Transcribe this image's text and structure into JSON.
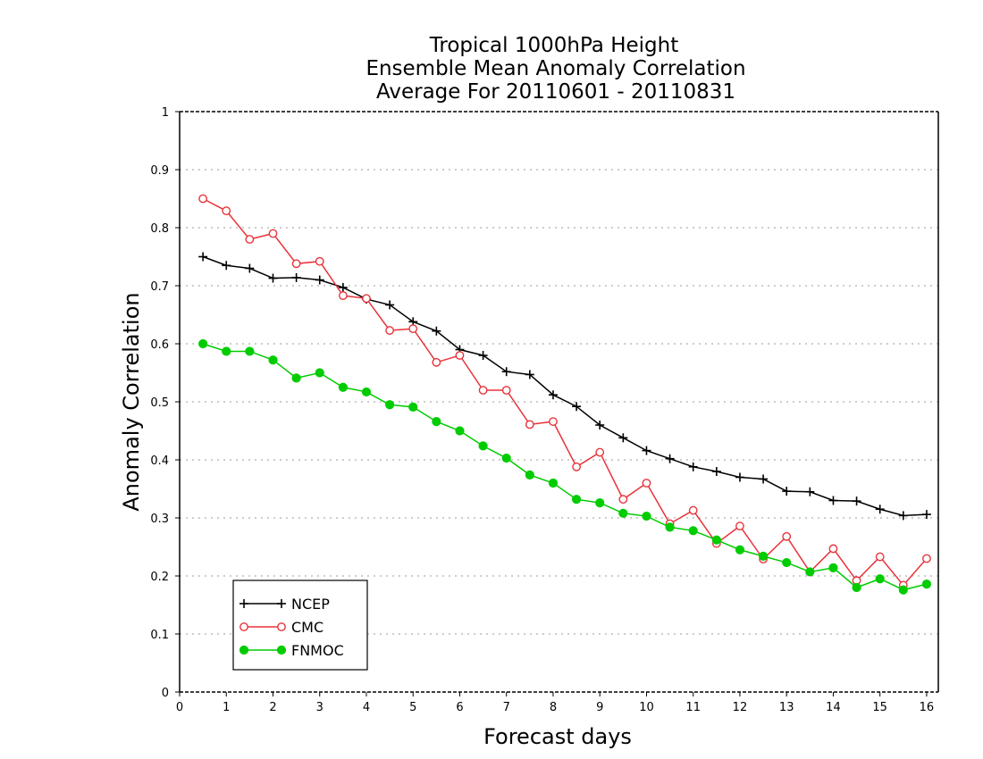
{
  "chart_data": {
    "type": "line",
    "title": [
      "Tropical 1000hPa Height",
      "Ensemble Mean Anomaly Correlation",
      "Average For 20110601 - 20110831"
    ],
    "xlabel": "Forecast days",
    "ylabel": "Anomaly Correlation",
    "xlim": [
      0,
      16.25
    ],
    "ylim": [
      0,
      1
    ],
    "xticks": [
      "0",
      "1",
      "2",
      "3",
      "4",
      "5",
      "6",
      "7",
      "8",
      "9",
      "10",
      "11",
      "12",
      "13",
      "14",
      "15",
      "16"
    ],
    "yticks": [
      "0",
      "0.1",
      "0.2",
      "0.3",
      "0.4",
      "0.5",
      "0.6",
      "0.7",
      "0.8",
      "0.9",
      "1"
    ],
    "grid": "horizontal dotted",
    "legend_position": "bottom-left",
    "x": [
      0.5,
      1,
      1.5,
      2,
      2.5,
      3,
      3.5,
      4,
      4.5,
      5,
      5.5,
      6,
      6.5,
      7,
      7.5,
      8,
      8.5,
      9,
      9.5,
      10,
      10.5,
      11,
      11.5,
      12,
      12.5,
      13,
      13.5,
      14,
      14.5,
      15,
      15.5,
      16
    ],
    "series": [
      {
        "name": "NCEP",
        "color": "#000000",
        "marker": "plus",
        "values": [
          0.75,
          0.735,
          0.73,
          0.713,
          0.714,
          0.71,
          0.697,
          0.677,
          0.667,
          0.638,
          0.622,
          0.59,
          0.58,
          0.552,
          0.547,
          0.512,
          0.492,
          0.46,
          0.438,
          0.416,
          0.402,
          0.388,
          0.38,
          0.37,
          0.367,
          0.346,
          0.345,
          0.33,
          0.329,
          0.315,
          0.304,
          0.306
        ]
      },
      {
        "name": "CMC",
        "color": "#e8333a",
        "marker": "open-circle",
        "values": [
          0.85,
          0.829,
          0.78,
          0.79,
          0.738,
          0.742,
          0.683,
          0.678,
          0.623,
          0.626,
          0.568,
          0.58,
          0.52,
          0.52,
          0.461,
          0.466,
          0.388,
          0.413,
          0.332,
          0.36,
          0.29,
          0.313,
          0.256,
          0.286,
          0.229,
          0.268,
          0.207,
          0.247,
          0.192,
          0.233,
          0.184,
          0.23
        ]
      },
      {
        "name": "FNMOC",
        "color": "#00cc00",
        "marker": "filled-circle",
        "values": [
          0.6,
          0.587,
          0.587,
          0.572,
          0.541,
          0.55,
          0.525,
          0.517,
          0.495,
          0.491,
          0.466,
          0.45,
          0.424,
          0.403,
          0.374,
          0.36,
          0.332,
          0.326,
          0.308,
          0.303,
          0.284,
          0.278,
          0.262,
          0.245,
          0.234,
          0.223,
          0.207,
          0.214,
          0.18,
          0.195,
          0.176,
          0.186
        ]
      }
    ]
  }
}
